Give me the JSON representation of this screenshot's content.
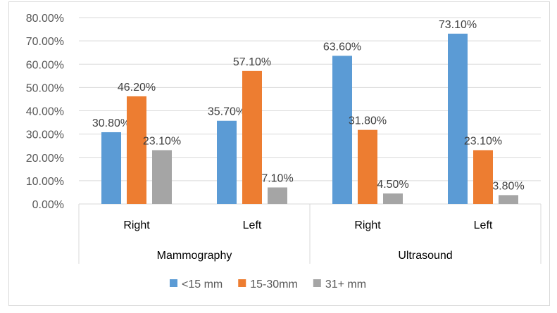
{
  "chart_data": {
    "type": "bar",
    "title": "",
    "xlabel": "",
    "ylabel": "",
    "ylim": [
      0,
      80
    ],
    "yticks": [
      "0.00%",
      "10.00%",
      "20.00%",
      "30.00%",
      "40.00%",
      "50.00%",
      "60.00%",
      "70.00%",
      "80.00%"
    ],
    "groups": [
      "Mammography",
      "Ultrasound"
    ],
    "categories": [
      "Right",
      "Left",
      "Right",
      "Left"
    ],
    "series": [
      {
        "name": "<15 mm",
        "color": "#5B9BD5",
        "values": [
          30.8,
          35.7,
          63.6,
          73.1
        ],
        "labels": [
          "30.80%",
          "35.70%",
          "63.60%",
          "73.10%"
        ]
      },
      {
        "name": "15-30mm",
        "color": "#ED7D31",
        "values": [
          46.2,
          57.1,
          31.8,
          23.1
        ],
        "labels": [
          "46.20%",
          "57.10%",
          "31.80%",
          "23.10%"
        ]
      },
      {
        "name": "31+ mm",
        "color": "#A5A5A5",
        "values": [
          23.1,
          7.1,
          4.5,
          3.8
        ],
        "labels": [
          "23.10%",
          "7.10%",
          "4.50%",
          "3.80%"
        ]
      }
    ],
    "grid": true,
    "legend": "bottom"
  }
}
